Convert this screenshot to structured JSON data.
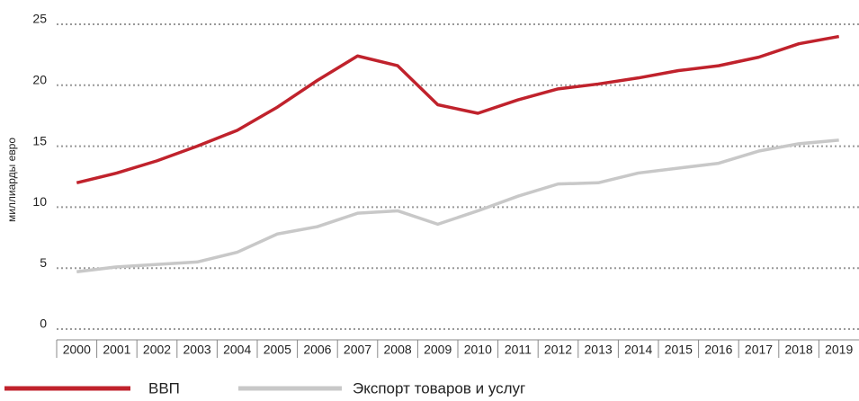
{
  "chart_data": {
    "type": "line",
    "y_label": "миллиарды евро",
    "categories": [
      "2000",
      "2001",
      "2002",
      "2003",
      "2004",
      "2005",
      "2006",
      "2007",
      "2008",
      "2009",
      "2010",
      "2011",
      "2012",
      "2013",
      "2014",
      "2015",
      "2016",
      "2017",
      "2018",
      "2019"
    ],
    "series": [
      {
        "name": "ВВП",
        "color": "#c0222c",
        "values": [
          12.0,
          12.8,
          13.8,
          15.0,
          16.3,
          18.2,
          20.4,
          22.4,
          21.6,
          18.4,
          17.7,
          18.8,
          19.7,
          20.1,
          20.6,
          21.2,
          21.6,
          22.3,
          23.4,
          24.0
        ]
      },
      {
        "name": "Экспорт товаров и услуг",
        "color": "#c8c8c8",
        "values": [
          4.7,
          5.1,
          5.3,
          5.5,
          6.3,
          7.8,
          8.4,
          9.5,
          9.7,
          8.6,
          9.7,
          10.9,
          11.9,
          12.0,
          12.8,
          13.2,
          13.6,
          14.6,
          15.2,
          15.5
        ]
      }
    ],
    "ylim": [
      0,
      25
    ],
    "yticks": [
      0,
      5,
      10,
      15,
      20,
      25
    ],
    "grid": true,
    "legend": "bottom-left"
  }
}
